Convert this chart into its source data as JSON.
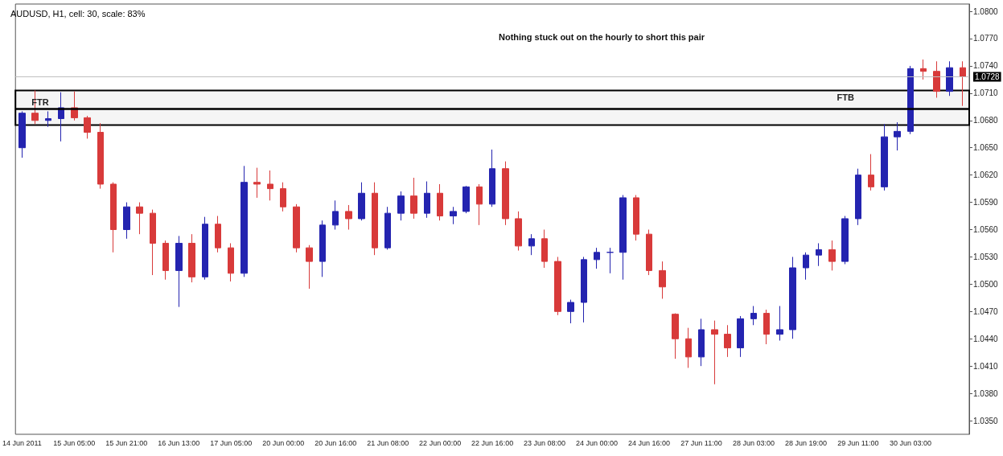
{
  "chart_data": {
    "type": "candlestick",
    "title": "AUDUSD, H1, cell: 30, scale: 83%",
    "annotations": [
      "Nothing stuck out on the hourly to short this pair"
    ],
    "categories": [
      "14 Jun 2011",
      null,
      null,
      null,
      "15 Jun 05:00",
      null,
      null,
      null,
      "15 Jun 21:00",
      null,
      null,
      null,
      "16 Jun 13:00",
      null,
      null,
      null,
      "17 Jun 05:00",
      null,
      null,
      null,
      "20 Jun 00:00",
      null,
      null,
      null,
      "20 Jun 16:00",
      null,
      null,
      null,
      "21 Jun 08:00",
      null,
      null,
      null,
      "22 Jun 00:00",
      null,
      null,
      null,
      "22 Jun 16:00",
      null,
      null,
      null,
      "23 Jun 08:00",
      null,
      null,
      null,
      "24 Jun 00:00",
      null,
      null,
      null,
      "24 Jun 16:00",
      null,
      null,
      null,
      "27 Jun 11:00",
      null,
      null,
      null,
      "28 Jun 03:00",
      null,
      null,
      null,
      "28 Jun 19:00",
      null,
      null,
      null,
      "29 Jun 11:00",
      null,
      null,
      null,
      "30 Jun 03:00",
      null,
      null,
      null,
      null
    ],
    "ohlc": [
      [
        1.065,
        1.069,
        1.0639,
        1.0688
      ],
      [
        1.0688,
        1.0713,
        1.0676,
        1.068
      ],
      [
        1.068,
        1.069,
        1.0673,
        1.0682
      ],
      [
        1.0682,
        1.0711,
        1.0657,
        1.0694
      ],
      [
        1.0694,
        1.0712,
        1.068,
        1.0683
      ],
      [
        1.0683,
        1.0685,
        1.066,
        1.0667
      ],
      [
        1.0667,
        1.0677,
        1.0605,
        1.061
      ],
      [
        1.061,
        1.0612,
        1.0535,
        1.056
      ],
      [
        1.056,
        1.059,
        1.055,
        1.0585
      ],
      [
        1.0585,
        1.059,
        1.0555,
        1.0578
      ],
      [
        1.0578,
        1.0582,
        1.051,
        1.0545
      ],
      [
        1.0545,
        1.0548,
        1.0505,
        1.0515
      ],
      [
        1.0515,
        1.0553,
        1.0475,
        1.0545
      ],
      [
        1.0545,
        1.0555,
        1.0502,
        1.0508
      ],
      [
        1.0508,
        1.0574,
        1.0505,
        1.0566
      ],
      [
        1.0566,
        1.0575,
        1.0535,
        1.054
      ],
      [
        1.054,
        1.0545,
        1.0503,
        1.0512
      ],
      [
        1.0512,
        1.063,
        1.0508,
        1.0612
      ],
      [
        1.0612,
        1.0628,
        1.0595,
        1.061
      ],
      [
        1.061,
        1.0625,
        1.0592,
        1.0605
      ],
      [
        1.0605,
        1.0612,
        1.058,
        1.0585
      ],
      [
        1.0585,
        1.0588,
        1.0535,
        1.054
      ],
      [
        1.054,
        1.0543,
        1.0495,
        1.0525
      ],
      [
        1.0525,
        1.057,
        1.0508,
        1.0565
      ],
      [
        1.0565,
        1.0592,
        1.056,
        1.058
      ],
      [
        1.058,
        1.0587,
        1.056,
        1.0572
      ],
      [
        1.0572,
        1.0612,
        1.057,
        1.06
      ],
      [
        1.06,
        1.0612,
        1.0532,
        1.054
      ],
      [
        1.054,
        1.0585,
        1.0538,
        1.0578
      ],
      [
        1.0578,
        1.0602,
        1.057,
        1.0597
      ],
      [
        1.0597,
        1.0617,
        1.0572,
        1.0578
      ],
      [
        1.0578,
        1.0613,
        1.0573,
        1.06
      ],
      [
        1.06,
        1.061,
        1.057,
        1.0575
      ],
      [
        1.0575,
        1.0585,
        1.0566,
        1.058
      ],
      [
        1.058,
        1.0608,
        1.0578,
        1.0607
      ],
      [
        1.0607,
        1.061,
        1.0565,
        1.0588
      ],
      [
        1.0588,
        1.0648,
        1.0585,
        1.0627
      ],
      [
        1.0627,
        1.0635,
        1.0565,
        1.0572
      ],
      [
        1.0572,
        1.058,
        1.0537,
        1.0542
      ],
      [
        1.0542,
        1.0555,
        1.0532,
        1.055
      ],
      [
        1.055,
        1.056,
        1.0518,
        1.0525
      ],
      [
        1.0525,
        1.053,
        1.0466,
        1.047
      ],
      [
        1.047,
        1.0483,
        1.0457,
        1.048
      ],
      [
        1.048,
        1.053,
        1.0458,
        1.0527
      ],
      [
        1.0527,
        1.054,
        1.0517,
        1.0535
      ],
      [
        1.0535,
        1.054,
        1.0512,
        1.0535
      ],
      [
        1.0535,
        1.0598,
        1.0505,
        1.0595
      ],
      [
        1.0595,
        1.0598,
        1.0548,
        1.0555
      ],
      [
        1.0555,
        1.056,
        1.051,
        1.0515
      ],
      [
        1.0515,
        1.0525,
        1.0484,
        1.0497
      ],
      [
        1.0467,
        1.0468,
        1.0418,
        1.044
      ],
      [
        1.044,
        1.0452,
        1.0408,
        1.042
      ],
      [
        1.042,
        1.0462,
        1.041,
        1.045
      ],
      [
        1.045,
        1.046,
        1.039,
        1.0445
      ],
      [
        1.0445,
        1.0455,
        1.042,
        1.043
      ],
      [
        1.043,
        1.0465,
        1.042,
        1.0462
      ],
      [
        1.0462,
        1.0476,
        1.0455,
        1.0468
      ],
      [
        1.0468,
        1.0472,
        1.0434,
        1.0445
      ],
      [
        1.0445,
        1.0476,
        1.0438,
        1.045
      ],
      [
        1.045,
        1.053,
        1.044,
        1.0518
      ],
      [
        1.0518,
        1.0535,
        1.0505,
        1.0532
      ],
      [
        1.0532,
        1.0545,
        1.052,
        1.0538
      ],
      [
        1.0538,
        1.0548,
        1.0515,
        1.0525
      ],
      [
        1.0525,
        1.0575,
        1.0522,
        1.0572
      ],
      [
        1.0572,
        1.0627,
        1.0565,
        1.062
      ],
      [
        1.062,
        1.0643,
        1.0603,
        1.0607
      ],
      [
        1.0607,
        1.0676,
        1.0603,
        1.0662
      ],
      [
        1.0662,
        1.0678,
        1.0647,
        1.0668
      ],
      [
        1.0668,
        1.074,
        1.0665,
        1.0737
      ],
      [
        1.0737,
        1.0747,
        1.0725,
        1.0734
      ],
      [
        1.0734,
        1.0745,
        1.0705,
        1.0712
      ],
      [
        1.0712,
        1.0745,
        1.0707,
        1.0738
      ],
      [
        1.0738,
        1.0745,
        1.0696,
        1.0728
      ]
    ],
    "colors": [
      "#2424b0",
      "#d83a3a",
      "#2424b0",
      "#2424b0",
      "#d83a3a",
      "#d83a3a",
      "#d83a3a",
      "#d83a3a",
      "#2424b0",
      "#d83a3a",
      "#d83a3a",
      "#d83a3a",
      "#2424b0",
      "#d83a3a",
      "#2424b0",
      "#d83a3a",
      "#d83a3a",
      "#2424b0",
      "#d83a3a",
      "#d83a3a",
      "#d83a3a",
      "#d83a3a",
      "#d83a3a",
      "#2424b0",
      "#2424b0",
      "#d83a3a",
      "#2424b0",
      "#d83a3a",
      "#2424b0",
      "#2424b0",
      "#d83a3a",
      "#2424b0",
      "#d83a3a",
      "#2424b0",
      "#2424b0",
      "#d83a3a",
      "#2424b0",
      "#d83a3a",
      "#d83a3a",
      "#2424b0",
      "#d83a3a",
      "#d83a3a",
      "#2424b0",
      "#2424b0",
      "#2424b0",
      "#2424b0",
      "#2424b0",
      "#d83a3a",
      "#d83a3a",
      "#d83a3a",
      "#d83a3a",
      "#d83a3a",
      "#2424b0",
      "#d83a3a",
      "#d83a3a",
      "#2424b0",
      "#2424b0",
      "#d83a3a",
      "#2424b0",
      "#2424b0",
      "#2424b0",
      "#2424b0",
      "#d83a3a",
      "#2424b0",
      "#2424b0",
      "#d83a3a",
      "#2424b0",
      "#2424b0",
      "#2424b0",
      "#d83a3a",
      "#d83a3a",
      "#2424b0",
      "#d83a3a"
    ],
    "ylim": [
      1.0335,
      1.0808
    ],
    "yticks": [
      {
        "value": 1.035,
        "label": "1.0350"
      },
      {
        "value": 1.038,
        "label": "1.0380"
      },
      {
        "value": 1.041,
        "label": "1.0410"
      },
      {
        "value": 1.044,
        "label": "1.0440"
      },
      {
        "value": 1.047,
        "label": "1.0470"
      },
      {
        "value": 1.05,
        "label": "1.0500"
      },
      {
        "value": 1.053,
        "label": "1.0530"
      },
      {
        "value": 1.056,
        "label": "1.0560"
      },
      {
        "value": 1.059,
        "label": "1.0590"
      },
      {
        "value": 1.062,
        "label": "1.0620"
      },
      {
        "value": 1.065,
        "label": "1.0650"
      },
      {
        "value": 1.068,
        "label": "1.0680"
      },
      {
        "value": 1.071,
        "label": "1.0710"
      },
      {
        "value": 1.074,
        "label": "1.0740"
      },
      {
        "value": 1.077,
        "label": "1.0770"
      },
      {
        "value": 1.08,
        "label": "1.0800"
      }
    ],
    "ref_lines": [
      {
        "axis": "y",
        "value": 1.0728,
        "label": "1.0728",
        "color": "#c0c0c0"
      },
      {
        "axis": "y",
        "value": 1.0693,
        "label": "FTR",
        "color": "#000000"
      }
    ],
    "bands": [
      {
        "axis": "y",
        "from": 1.0675,
        "to": 1.0713,
        "label": "FTB",
        "color": "#000000"
      }
    ]
  }
}
